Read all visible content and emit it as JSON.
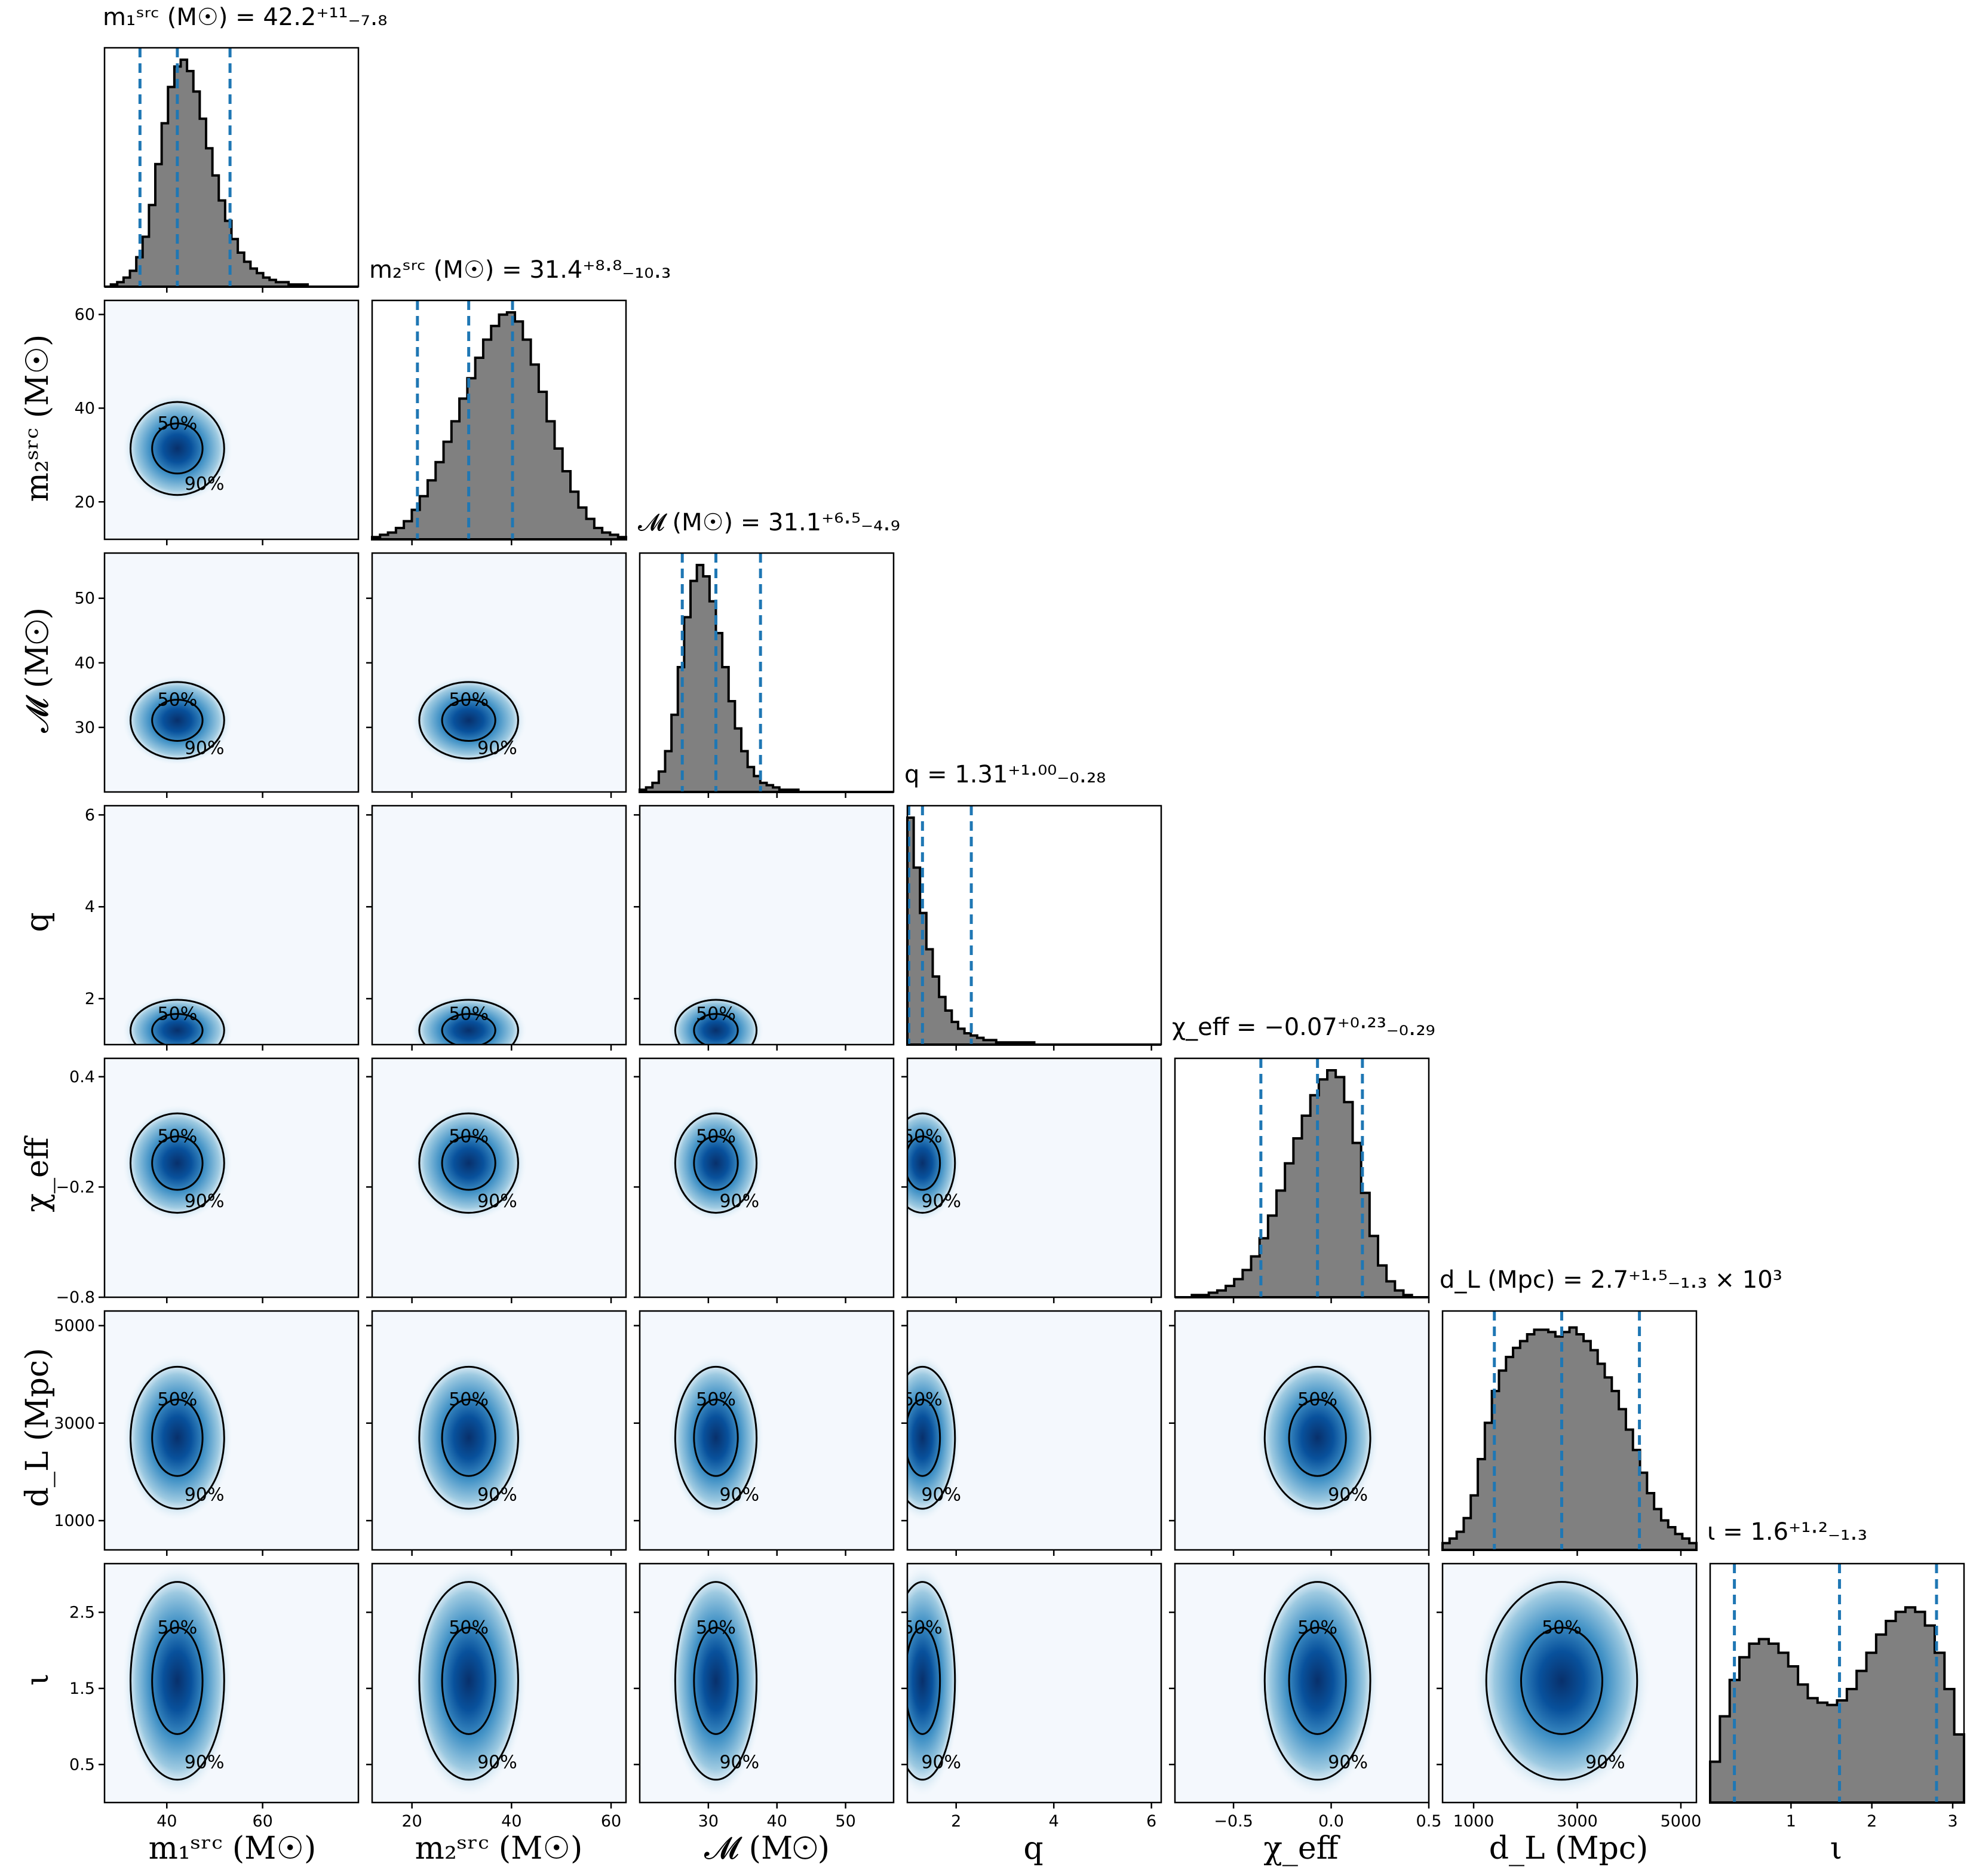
{
  "chart_data": {
    "type": "corner",
    "colors": {
      "histogram_fill": "#808080",
      "histogram_edge": "#000000",
      "quantile_lines": "#1f77b4",
      "density_colormap": "Blues",
      "contour": "#000000"
    },
    "contour_levels": [
      "50%",
      "90%"
    ],
    "parameters": [
      {
        "id": "m1",
        "label": "m₁ˢʳᶜ (M☉)",
        "title": "m₁ˢʳᶜ (M☉) = 42.2⁺¹¹₋₇.₈",
        "median": 42.2,
        "upper_err": 11,
        "lower_err": 7.8,
        "quantiles": [
          34.4,
          42.2,
          53.2
        ],
        "range": [
          27,
          80
        ],
        "ticks": [
          40,
          60
        ]
      },
      {
        "id": "m2",
        "label": "m₂ˢʳᶜ (M☉)",
        "title": "m₂ˢʳᶜ (M☉) = 31.4⁺⁸·⁸₋₁₀.₃",
        "median": 31.4,
        "upper_err": 8.8,
        "lower_err": 10.3,
        "quantiles": [
          21.1,
          31.4,
          40.2
        ],
        "range": [
          12,
          63
        ],
        "ticks": [
          20,
          40,
          60
        ]
      },
      {
        "id": "mc",
        "label": "𝓜 (M☉)",
        "title": "𝓜 (M☉) = 31.1⁺⁶·⁵₋₄.₉",
        "median": 31.1,
        "upper_err": 6.5,
        "lower_err": 4.9,
        "quantiles": [
          26.2,
          31.1,
          37.6
        ],
        "range": [
          20,
          57
        ],
        "ticks": [
          30,
          40,
          50
        ]
      },
      {
        "id": "q",
        "label": "q",
        "title": "q = 1.31⁺¹·⁰⁰₋₀.₂₈",
        "median": 1.31,
        "upper_err": 1.0,
        "lower_err": 0.28,
        "quantiles": [
          1.03,
          1.31,
          2.31
        ],
        "range": [
          1.0,
          6.2
        ],
        "ticks": [
          2,
          4,
          6
        ]
      },
      {
        "id": "chi",
        "label": "χ_eff",
        "title": "χ_eff = −0.07⁺⁰·²³₋₀.₂₉",
        "median": -0.07,
        "upper_err": 0.23,
        "lower_err": 0.29,
        "quantiles": [
          -0.36,
          -0.07,
          0.16
        ],
        "range": [
          -0.8,
          0.5
        ],
        "ticks": [
          -0.5,
          0.0,
          0.5
        ],
        "yticks": [
          -0.8,
          -0.2,
          0.4
        ]
      },
      {
        "id": "dl",
        "label": "d_L (Mpc)",
        "title": "d_L (Mpc) = 2.7⁺¹·⁵₋₁.₃ × 10³",
        "median": 2700,
        "upper_err": 1500,
        "lower_err": 1300,
        "quantiles": [
          1400,
          2700,
          4200
        ],
        "range": [
          400,
          5300
        ],
        "ticks": [
          1000,
          3000,
          5000
        ]
      },
      {
        "id": "iota",
        "label": "ι",
        "title": "ι = 1.6⁺¹·²₋₁.₃",
        "median": 1.6,
        "upper_err": 1.2,
        "lower_err": 1.3,
        "quantiles": [
          0.3,
          1.6,
          2.8
        ],
        "range": [
          0.0,
          3.14
        ],
        "ticks": [
          1,
          2,
          3
        ],
        "yticks": [
          0.5,
          1.5,
          2.5
        ]
      }
    ],
    "tick_labels": {
      "m1": [
        "40",
        "60"
      ],
      "m2": [
        "20",
        "40",
        "60"
      ],
      "m2_y": [
        "20",
        "40",
        "60"
      ],
      "mc": [
        "30",
        "40",
        "50"
      ],
      "mc_y": [
        "30",
        "40",
        "50"
      ],
      "q": [
        "2",
        "4",
        "6"
      ],
      "chi": [
        "−0.5",
        "0.0",
        "0.5"
      ],
      "chi_y": [
        "−0.8",
        "−0.2",
        "0.4"
      ],
      "dl": [
        "1000",
        "3000",
        "5000"
      ],
      "iota": [
        "1",
        "2",
        "3"
      ],
      "iota_y": [
        "0.5",
        "1.5",
        "2.5"
      ]
    },
    "histograms": {
      "m1": [
        0,
        1,
        2,
        4,
        7,
        13,
        22,
        36,
        54,
        72,
        88,
        97,
        100,
        95,
        86,
        74,
        61,
        49,
        38,
        29,
        21,
        15,
        11,
        8,
        6,
        4,
        3,
        2,
        2,
        1,
        1,
        1,
        0,
        0,
        0,
        0,
        0,
        0,
        0,
        0
      ],
      "m2": [
        1,
        2,
        3,
        5,
        8,
        13,
        19,
        26,
        34,
        43,
        52,
        62,
        71,
        80,
        88,
        94,
        99,
        100,
        96,
        88,
        77,
        65,
        52,
        40,
        30,
        21,
        14,
        9,
        5,
        3,
        2,
        1
      ],
      "mc": [
        1,
        2,
        4,
        9,
        18,
        34,
        55,
        77,
        93,
        100,
        95,
        84,
        70,
        55,
        40,
        28,
        18,
        11,
        7,
        4,
        3,
        2,
        1,
        1,
        1,
        0,
        0,
        0,
        0,
        0,
        0,
        0,
        0,
        0,
        0,
        0,
        0,
        0,
        0,
        0
      ],
      "q": [
        100,
        78,
        58,
        42,
        30,
        21,
        15,
        10,
        7,
        5,
        4,
        3,
        2,
        2,
        1,
        1,
        1,
        1,
        1,
        1,
        0,
        0,
        0,
        0,
        0,
        0,
        0,
        0,
        0,
        0,
        0,
        0,
        0,
        0,
        0,
        0,
        0,
        0,
        0,
        0
      ],
      "chi": [
        0,
        0,
        1,
        1,
        2,
        3,
        5,
        8,
        12,
        18,
        26,
        36,
        47,
        59,
        70,
        80,
        89,
        96,
        100,
        97,
        86,
        68,
        46,
        27,
        14,
        7,
        3,
        1,
        0,
        0
      ],
      "dl": [
        3,
        5,
        8,
        14,
        24,
        40,
        56,
        70,
        79,
        85,
        89,
        92,
        95,
        97,
        97,
        96,
        94,
        96,
        98,
        95,
        92,
        88,
        82,
        76,
        70,
        62,
        53,
        44,
        34,
        25,
        18,
        13,
        10,
        7,
        5,
        3
      ],
      "iota": [
        18,
        38,
        54,
        64,
        70,
        72,
        70,
        66,
        60,
        52,
        46,
        44,
        43,
        45,
        50,
        58,
        66,
        74,
        80,
        84,
        86,
        84,
        78,
        66,
        50,
        30
      ]
    },
    "density_note": "2-D posterior density shown per parameter pair with 50% and 90% credible contours"
  }
}
